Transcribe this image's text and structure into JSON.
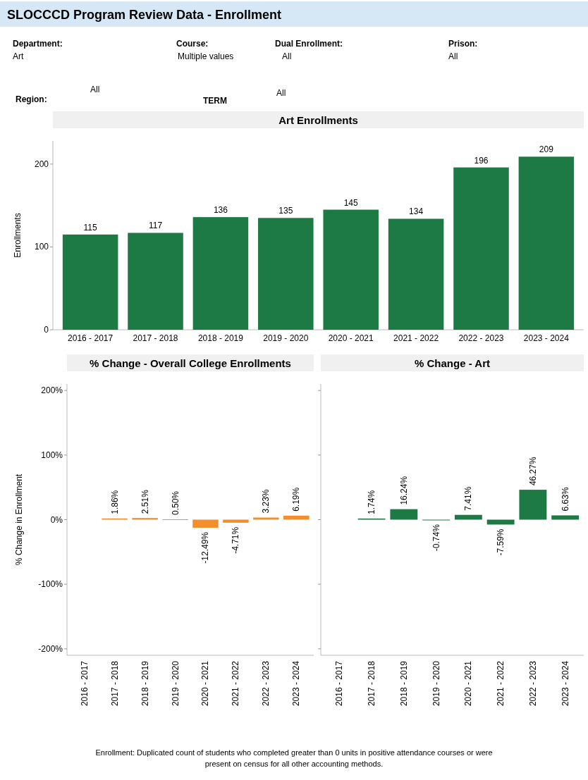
{
  "chart_data": [
    {
      "type": "other",
      "title": "SLOCCCD Program Review Data - Enrollment",
      "annotations": [
        "Department:",
        "Art",
        "Course:",
        "Multiple values",
        "Dual Enrollment:",
        "All",
        "Prison:",
        "All",
        "Region:",
        "All",
        "TERM",
        "All",
        "Enrollment: Duplicated count of students who completed greater than 0 units in positive attendance courses or were present on census for all other accounting methods."
      ]
    },
    {
      "type": "bar",
      "title": "Art Enrollments",
      "ylabel": "Enrollments",
      "categories": [
        "2016 - 2017",
        "2017 - 2018",
        "2018 - 2019",
        "2019 - 2020",
        "2020 - 2021",
        "2021 - 2022",
        "2022 - 2023",
        "2023 - 2024"
      ],
      "values": [
        115,
        117,
        136,
        135,
        145,
        134,
        196,
        209
      ],
      "color": "#1e7a45",
      "ylim": [
        0,
        228
      ],
      "yticks": [
        0,
        100,
        200
      ],
      "data_labels": true
    },
    {
      "type": "bar",
      "title": "% Change - Overall College Enrollments",
      "ylabel": "% Change in Enrollment",
      "categories": [
        "2016 - 2017",
        "2017 - 2018",
        "2018 - 2019",
        "2019 - 2020",
        "2020 - 2021",
        "2021 - 2022",
        "2022 - 2023",
        "2023 - 2024"
      ],
      "values": [
        null,
        1.86,
        2.51,
        0.5,
        -12.49,
        -4.71,
        3.23,
        6.19
      ],
      "value_labels": [
        null,
        "1.86%",
        "2.51%",
        "0.50%",
        "-12.49%",
        "-4.71%",
        "3.23%",
        "6.19%"
      ],
      "color": "#f28e2b",
      "ylim": [
        -210,
        210
      ],
      "yticks": [
        {
          "value": -200,
          "label": "-200%"
        },
        {
          "value": -100,
          "label": "-100%"
        },
        {
          "value": 0,
          "label": "0%"
        },
        {
          "value": 100,
          "label": "100%"
        },
        {
          "value": 200,
          "label": "200%"
        }
      ]
    },
    {
      "type": "bar",
      "title": "% Change - Art",
      "categories": [
        "2016 - 2017",
        "2017 - 2018",
        "2018 - 2019",
        "2019 - 2020",
        "2020 - 2021",
        "2021 - 2022",
        "2022 - 2023",
        "2023 - 2024"
      ],
      "values": [
        null,
        1.74,
        16.24,
        -0.74,
        7.41,
        -7.59,
        46.27,
        6.63
      ],
      "value_labels": [
        null,
        "1.74%",
        "16.24%",
        "-0.74%",
        "7.41%",
        "-7.59%",
        "46.27%",
        "6.63%"
      ],
      "color": "#1e7a45",
      "ylim": [
        -210,
        210
      ],
      "yticks": [
        -200,
        -100,
        0,
        100,
        200
      ],
      "tick_labels": "x"
    }
  ]
}
